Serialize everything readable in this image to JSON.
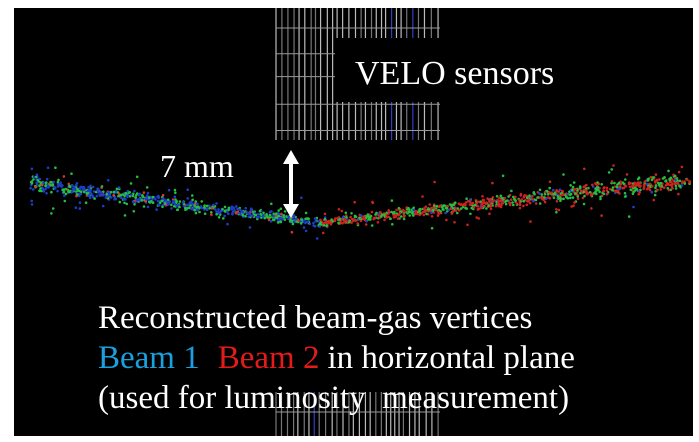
{
  "labels": {
    "sensors": "VELO sensors",
    "scale": "7 mm",
    "caption_line1": "Reconstructed beam-gas vertices",
    "beam1": "Beam 1",
    "beam2": "Beam 2",
    "caption_line2_rest": "in horizontal plane",
    "caption_line3": "(used for luminosity  measurement)"
  }
}
